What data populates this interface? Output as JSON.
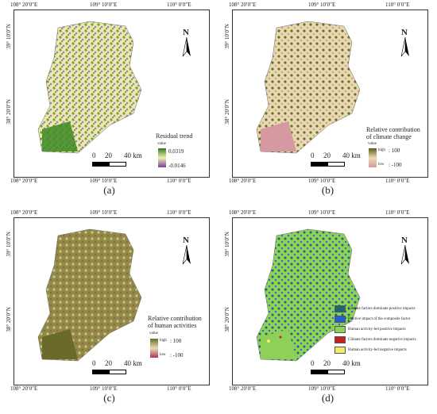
{
  "axis_ticks": {
    "x_left": "108° 20′0″E",
    "x_mid": "109° 10′0″E",
    "x_right": "110° 0′0″E",
    "y_top": "39° 10′0″N",
    "y_bottom": "38° 20′0″N"
  },
  "scale": {
    "zero": "0",
    "mid": "20",
    "end": "40 km"
  },
  "north_label": "N",
  "panels": {
    "a": {
      "caption": "(a)",
      "legend_title": "Residual trend",
      "legend_sub": "value",
      "high": "0.0319",
      "low": "-0.0146",
      "colors": [
        "#2f7d1e",
        "#f0eeb0",
        "#7a3fa0"
      ]
    },
    "b": {
      "caption": "(b)",
      "legend_title_1": "Relative contribution",
      "legend_title_2": "of climate change",
      "legend_sub": "value",
      "high_word": "high",
      "low_word": "low",
      "high": ": 100",
      "low": ": -100",
      "colors": [
        "#5a5a22",
        "#e9dcae",
        "#d79aa2"
      ]
    },
    "c": {
      "caption": "(c)",
      "legend_title_1": "Relative contribution",
      "legend_title_2": "of human activities",
      "legend_sub": "value",
      "high_word": "high",
      "low_word": "low",
      "high": ": 100",
      "low": ": -100",
      "colors": [
        "#6b6a2a",
        "#cfc48a",
        "#b3305e"
      ]
    },
    "d": {
      "caption": "(d)",
      "legend": [
        {
          "label": "Climate factors dominate positive impacts",
          "color": "#1d6a6a"
        },
        {
          "label": "Positive impact of the composite factor",
          "color": "#1f5fd1"
        },
        {
          "label": "Human activity-led positive impacts",
          "color": "#8fd05a"
        },
        {
          "label": "Climate factors dominate negative impacts",
          "color": "#c81e1e"
        },
        {
          "label": "Human activity-led negative impacts",
          "color": "#f0ee6a"
        }
      ]
    }
  }
}
